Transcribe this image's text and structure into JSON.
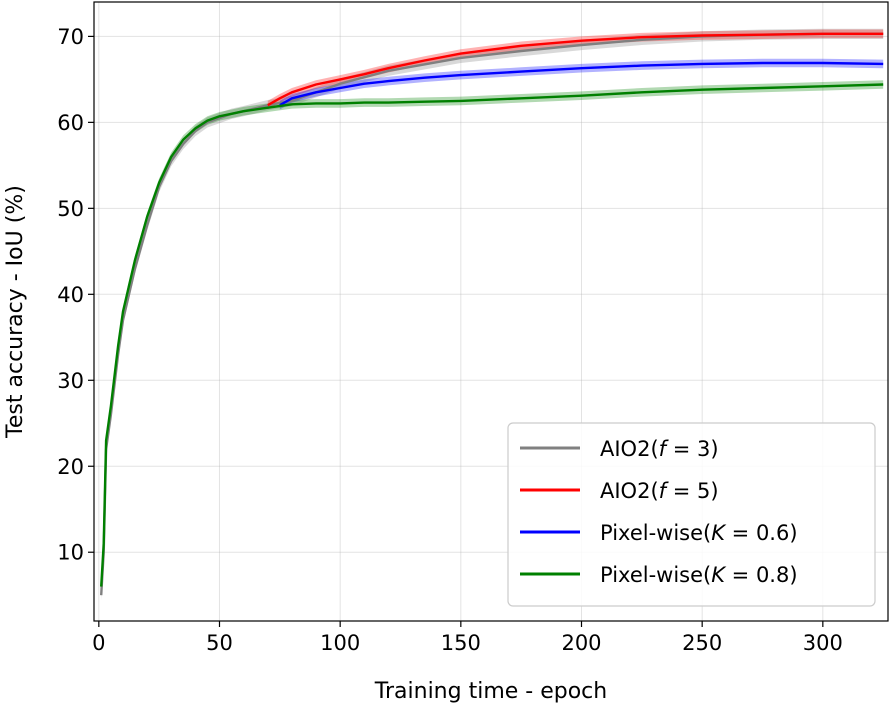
{
  "chart_data": {
    "type": "line",
    "xlabel": "Training time - epoch",
    "ylabel": "Test accuracy - IoU (%)",
    "xlim": [
      -2,
      327
    ],
    "ylim": [
      2,
      74
    ],
    "xticks": [
      0,
      50,
      100,
      150,
      200,
      250,
      300
    ],
    "yticks": [
      10,
      20,
      30,
      40,
      50,
      60,
      70
    ],
    "grid": true,
    "legend_position": "lower-right",
    "series": [
      {
        "name": "AIO2(f = 3)",
        "legend_prefix": "AIO2(",
        "legend_var": "f",
        "legend_suffix": " = 3)",
        "color": "#808080",
        "band": 0.6,
        "x": [
          1,
          2,
          3,
          5,
          8,
          10,
          15,
          20,
          25,
          30,
          35,
          40,
          45,
          50,
          55,
          60,
          70,
          80,
          100,
          120,
          150,
          175,
          200,
          225,
          250,
          275,
          300,
          325
        ],
        "y": [
          5,
          10,
          22,
          26,
          33,
          37,
          43,
          48,
          52.5,
          55.5,
          57.5,
          59,
          60,
          60.5,
          61,
          61.3,
          62,
          62.5,
          64.5,
          66,
          67.5,
          68.3,
          69,
          69.6,
          70,
          70.2,
          70.3,
          70.3
        ]
      },
      {
        "name": "AIO2(f = 5)",
        "legend_prefix": "AIO2(",
        "legend_var": "f",
        "legend_suffix": " = 5)",
        "color": "#ff0000",
        "band": 0.5,
        "x": [
          70,
          75,
          80,
          90,
          100,
          110,
          120,
          135,
          150,
          175,
          200,
          225,
          250,
          275,
          300,
          325
        ],
        "y": [
          62,
          62.8,
          63.5,
          64.4,
          65,
          65.6,
          66.3,
          67.2,
          68,
          68.9,
          69.5,
          69.9,
          70.1,
          70.2,
          70.3,
          70.3
        ]
      },
      {
        "name": "Pixel-wise(K = 0.6)",
        "legend_prefix": "Pixel-wise(",
        "legend_var": "K",
        "legend_suffix": " = 0.6)",
        "color": "#0000ff",
        "band": 0.5,
        "x": [
          75,
          80,
          90,
          100,
          110,
          120,
          135,
          150,
          175,
          200,
          225,
          250,
          275,
          300,
          325
        ],
        "y": [
          62,
          62.8,
          63.5,
          64,
          64.5,
          64.8,
          65.2,
          65.5,
          65.9,
          66.3,
          66.6,
          66.8,
          66.9,
          66.9,
          66.8
        ]
      },
      {
        "name": "Pixel-wise(K = 0.8)",
        "legend_prefix": "Pixel-wise(",
        "legend_var": "K",
        "legend_suffix": " = 0.8)",
        "color": "#008000",
        "band": 0.5,
        "x": [
          1,
          2,
          3,
          5,
          8,
          10,
          15,
          20,
          25,
          30,
          35,
          40,
          45,
          50,
          55,
          60,
          70,
          80,
          90,
          100,
          110,
          120,
          135,
          150,
          175,
          200,
          225,
          250,
          275,
          300,
          325
        ],
        "y": [
          6,
          11,
          23,
          27,
          34,
          38,
          44,
          49,
          53,
          56,
          58,
          59.3,
          60.2,
          60.7,
          61,
          61.3,
          61.7,
          62.1,
          62.2,
          62.2,
          62.3,
          62.3,
          62.4,
          62.5,
          62.8,
          63.1,
          63.5,
          63.8,
          64,
          64.2,
          64.4
        ]
      }
    ]
  }
}
